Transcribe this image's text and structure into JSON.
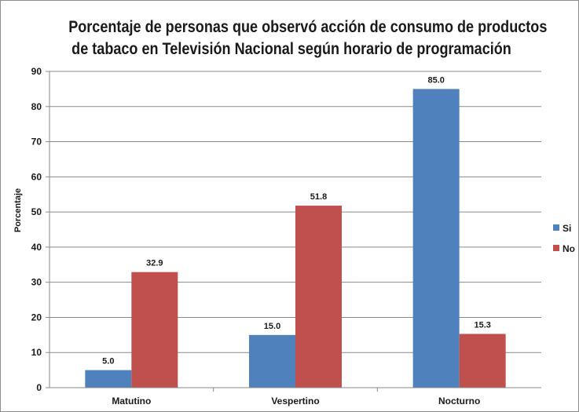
{
  "chart_data": {
    "type": "bar",
    "title_lines": [
      "Porcentaje de personas que observó acción de consumo de productos",
      "de tabaco en Televisión Nacional según horario de  programación"
    ],
    "xlabel": "",
    "ylabel": "Porcentaje",
    "ylim": [
      0,
      90
    ],
    "yticks": [
      0,
      10,
      20,
      30,
      40,
      50,
      60,
      70,
      80,
      90
    ],
    "categories": [
      "Matutino",
      "Vespertino",
      "Nocturno"
    ],
    "series": [
      {
        "name": "Si",
        "values": [
          5.0,
          15.0,
          85.0
        ],
        "labels": [
          "5.0",
          "15.0",
          "85.0"
        ],
        "color": "#4f81bd"
      },
      {
        "name": "No",
        "values": [
          32.9,
          51.8,
          15.3
        ],
        "labels": [
          "32.9",
          "51.8",
          "15.3"
        ],
        "color": "#c0504d"
      }
    ],
    "grid": true,
    "legend_position": "right"
  }
}
